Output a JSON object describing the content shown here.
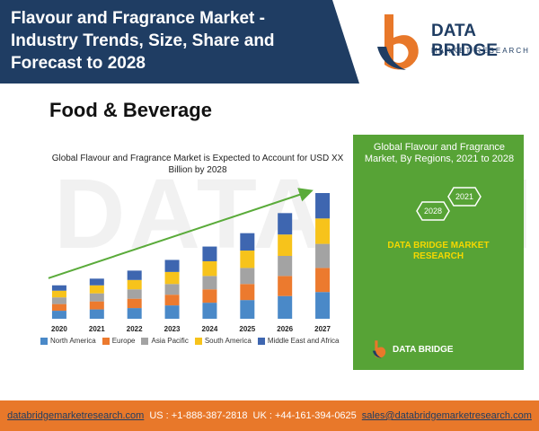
{
  "header": {
    "title": "Flavour and Fragrance Market - Industry Trends, Size, Share and Forecast to 2028",
    "brand_name": "DATA BRIDGE",
    "brand_sub": "MARKET RESEARCH"
  },
  "section_label": "Food & Beverage",
  "chart_data": {
    "type": "bar",
    "stacked": true,
    "title": "Global Flavour and Fragrance Market is Expected to Account for USD XX Billion by 2028",
    "categories": [
      "2020",
      "2021",
      "2022",
      "2023",
      "2024",
      "2025",
      "2026",
      "2027"
    ],
    "series": [
      {
        "name": "North America",
        "color": "#4a89c8",
        "values": [
          6,
          7,
          8,
          10,
          12,
          14,
          17,
          20
        ]
      },
      {
        "name": "Europe",
        "color": "#ec7a2e",
        "values": [
          5,
          6,
          7,
          8,
          10,
          12,
          15,
          18
        ]
      },
      {
        "name": "Asia Pacific",
        "color": "#a3a3a3",
        "values": [
          5,
          6,
          7,
          8,
          10,
          12,
          15,
          18
        ]
      },
      {
        "name": "South America",
        "color": "#f7c31b",
        "values": [
          5,
          6,
          7,
          9,
          11,
          13,
          16,
          19
        ]
      },
      {
        "name": "Middle East and Africa",
        "color": "#3e66b0",
        "values": [
          4,
          5,
          7,
          9,
          11,
          13,
          16,
          19
        ]
      }
    ],
    "trend_arrow": true,
    "trend_color": "#5aab3a",
    "grid": false
  },
  "regions_panel": {
    "title": "Global Flavour and Fragrance Market, By Regions, 2021 to 2028",
    "year_start": "2021",
    "year_end": "2028",
    "brand": "DATA BRIDGE MARKET RESEARCH",
    "mini_logo": "DATA BRIDGE"
  },
  "watermark": "DATA BRIDGE",
  "footer": {
    "website": "databridgemarketresearch.com",
    "us_phone": "US : +1-888-387-2818",
    "uk_phone": "UK : +44-161-394-0625",
    "email": "sales@databridgemarketresearch.com"
  }
}
